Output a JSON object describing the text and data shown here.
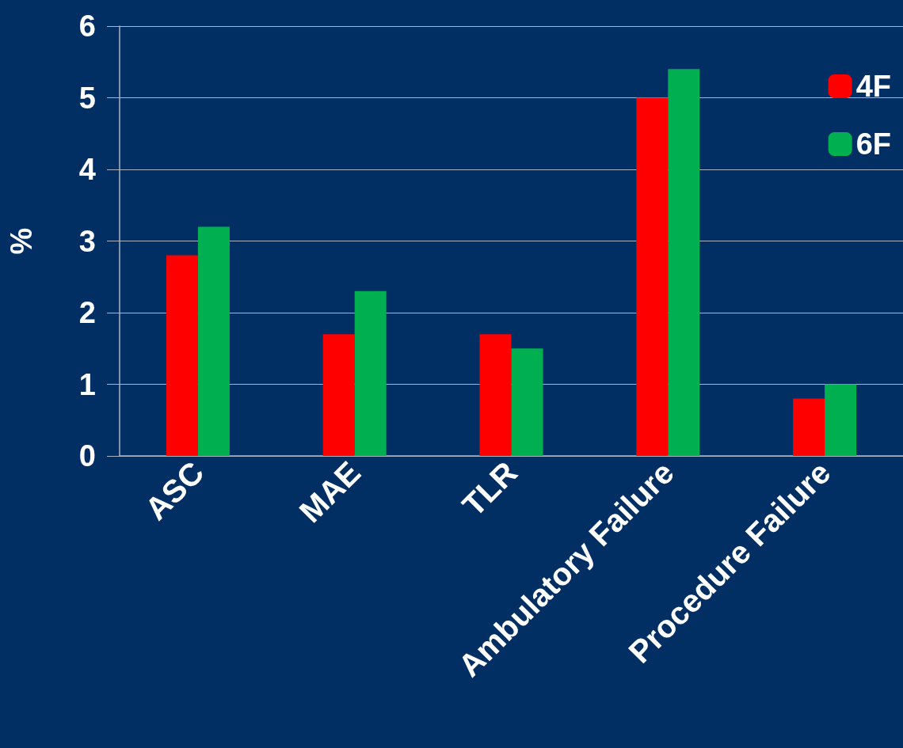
{
  "chart_data": {
    "type": "bar",
    "ylabel": "%",
    "categories": [
      "ASC",
      "MAE",
      "TLR",
      "Ambulatory Failure",
      "Procedure Failure"
    ],
    "series": [
      {
        "name": "4F",
        "color": "#ff0000",
        "values": [
          2.8,
          1.7,
          1.7,
          5.0,
          0.8
        ]
      },
      {
        "name": "6F",
        "color": "#00b050",
        "values": [
          3.2,
          2.3,
          1.5,
          5.4,
          1.0
        ]
      }
    ],
    "ylim": [
      0,
      6
    ],
    "yticks": [
      0,
      1,
      2,
      3,
      4,
      5,
      6
    ],
    "grid": "y",
    "legend": "top right"
  }
}
